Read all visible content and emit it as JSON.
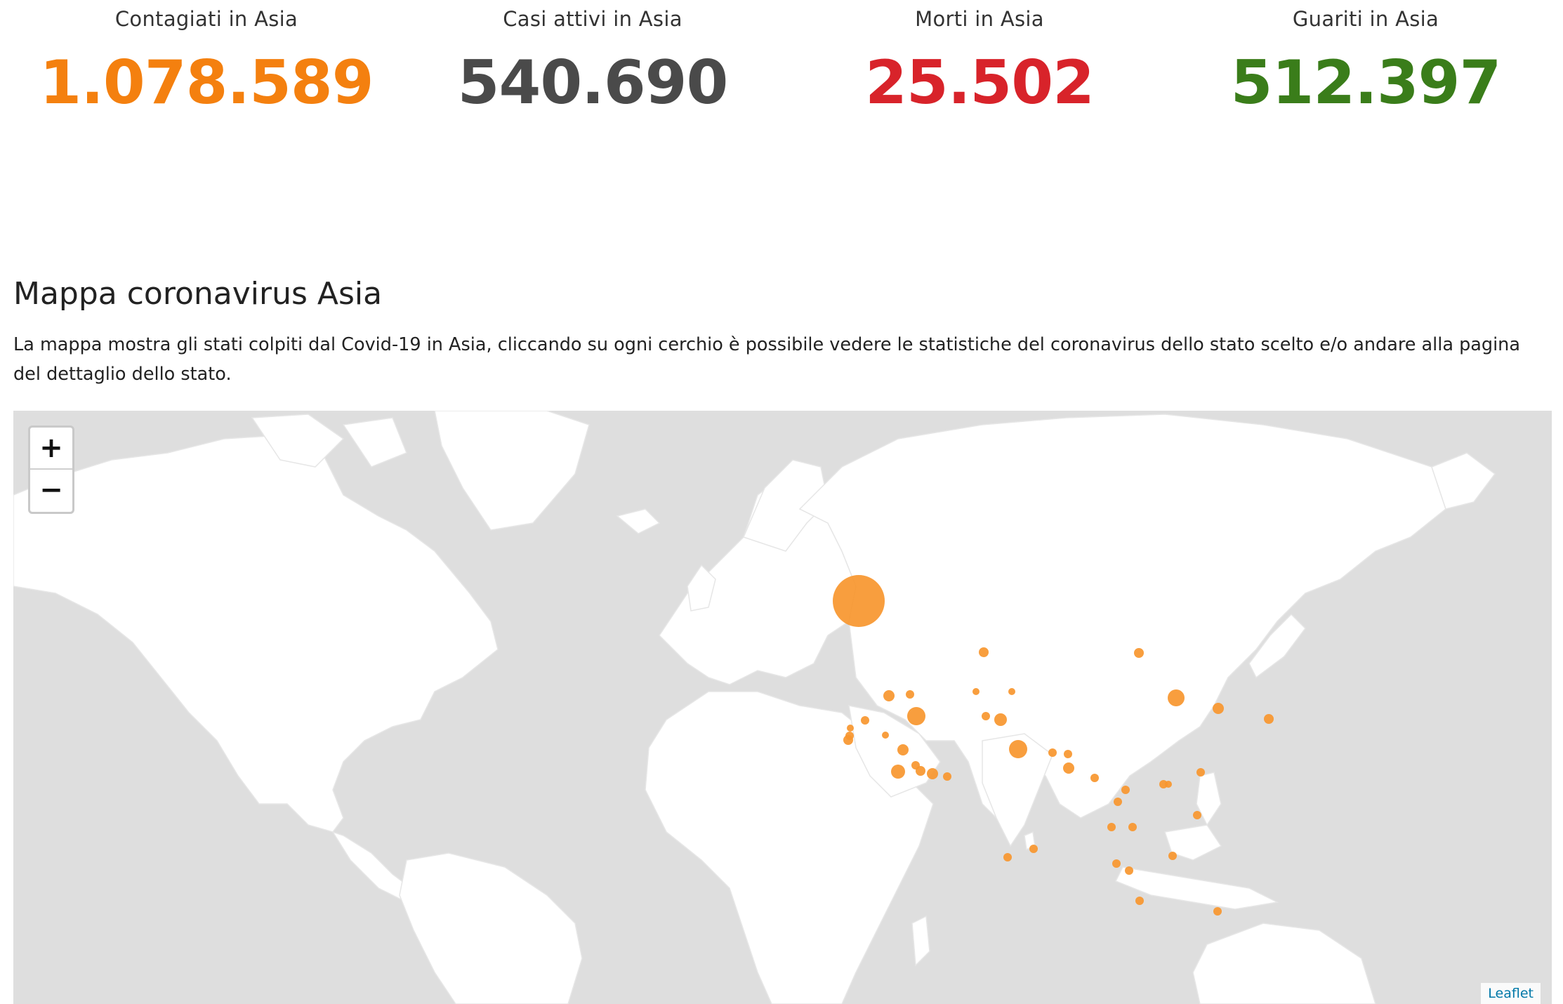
{
  "stats": [
    {
      "label": "Contagiati in Asia",
      "value": "1.078.589",
      "color": "#f4800f"
    },
    {
      "label": "Casi attivi in Asia",
      "value": "540.690",
      "color": "#4a4a4a"
    },
    {
      "label": "Morti in Asia",
      "value": "25.502",
      "color": "#d8232a"
    },
    {
      "label": "Guariti in Asia",
      "value": "512.397",
      "color": "#3a7d1a"
    }
  ],
  "map_section": {
    "title": "Mappa coronavirus Asia",
    "description": "La mappa mostra gli stati colpiti dal Covid-19 in Asia, cliccando su ogni cerchio è possibile vedere le statistiche del coronavirus dello stato scelto e/o andare alla pagina del dettaglio dello stato."
  },
  "map": {
    "zoom_in": "+",
    "zoom_out": "−",
    "attribution": "Leaflet",
    "land_color": "#ffffff",
    "water_color": "#dedede",
    "marker_color": "#f7962e"
  }
}
